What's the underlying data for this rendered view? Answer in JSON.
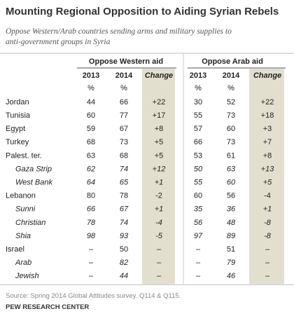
{
  "title": "Mounting Regional Opposition to Aiding Syrian Rebels",
  "subtitle": "Oppose Western/Arab countries sending arms and military supplies to anti-government groups in Syria",
  "table": {
    "groups": [
      "Oppose Western aid",
      "Oppose Arab aid"
    ],
    "columns": [
      "2013",
      "2014",
      "Change",
      "2013",
      "2014",
      "Change"
    ],
    "units": [
      "%",
      "%",
      "%",
      "%"
    ],
    "rows": [
      {
        "label": "Jordan",
        "sub": false,
        "cells": [
          "44",
          "66",
          "+22",
          "30",
          "52",
          "+22"
        ]
      },
      {
        "label": "Tunisia",
        "sub": false,
        "cells": [
          "60",
          "77",
          "+17",
          "55",
          "73",
          "+18"
        ]
      },
      {
        "label": "Egypt",
        "sub": false,
        "cells": [
          "59",
          "67",
          "+8",
          "57",
          "60",
          "+3"
        ]
      },
      {
        "label": "Turkey",
        "sub": false,
        "cells": [
          "68",
          "73",
          "+5",
          "66",
          "73",
          "+7"
        ]
      },
      {
        "label": "Palest. ter.",
        "sub": false,
        "cells": [
          "63",
          "68",
          "+5",
          "53",
          "61",
          "+8"
        ]
      },
      {
        "label": "Gaza Strip",
        "sub": true,
        "cells": [
          "62",
          "74",
          "+12",
          "50",
          "63",
          "+13"
        ]
      },
      {
        "label": "West Bank",
        "sub": true,
        "cells": [
          "64",
          "65",
          "+1",
          "55",
          "60",
          "+5"
        ]
      },
      {
        "label": "Lebanon",
        "sub": false,
        "cells": [
          "80",
          "78",
          "-2",
          "60",
          "56",
          "-4"
        ]
      },
      {
        "label": "Sunni",
        "sub": true,
        "cells": [
          "66",
          "67",
          "+1",
          "35",
          "36",
          "+1"
        ]
      },
      {
        "label": "Christian",
        "sub": true,
        "cells": [
          "78",
          "74",
          "-4",
          "56",
          "48",
          "-8"
        ]
      },
      {
        "label": "Shia",
        "sub": true,
        "cells": [
          "98",
          "93",
          "-5",
          "97",
          "89",
          "-8"
        ]
      },
      {
        "label": "Israel",
        "sub": false,
        "cells": [
          "–",
          "50",
          "–",
          "–",
          "51",
          "–"
        ]
      },
      {
        "label": "Arab",
        "sub": true,
        "cells": [
          "–",
          "82",
          "–",
          "–",
          "79",
          "–"
        ]
      },
      {
        "label": "Jewish",
        "sub": true,
        "cells": [
          "–",
          "44",
          "–",
          "–",
          "46",
          "–"
        ]
      }
    ]
  },
  "source": "Source: Spring 2014 Global Attitudes survey. Q114 & Q115.",
  "footer": "PEW RESEARCH CENTER"
}
